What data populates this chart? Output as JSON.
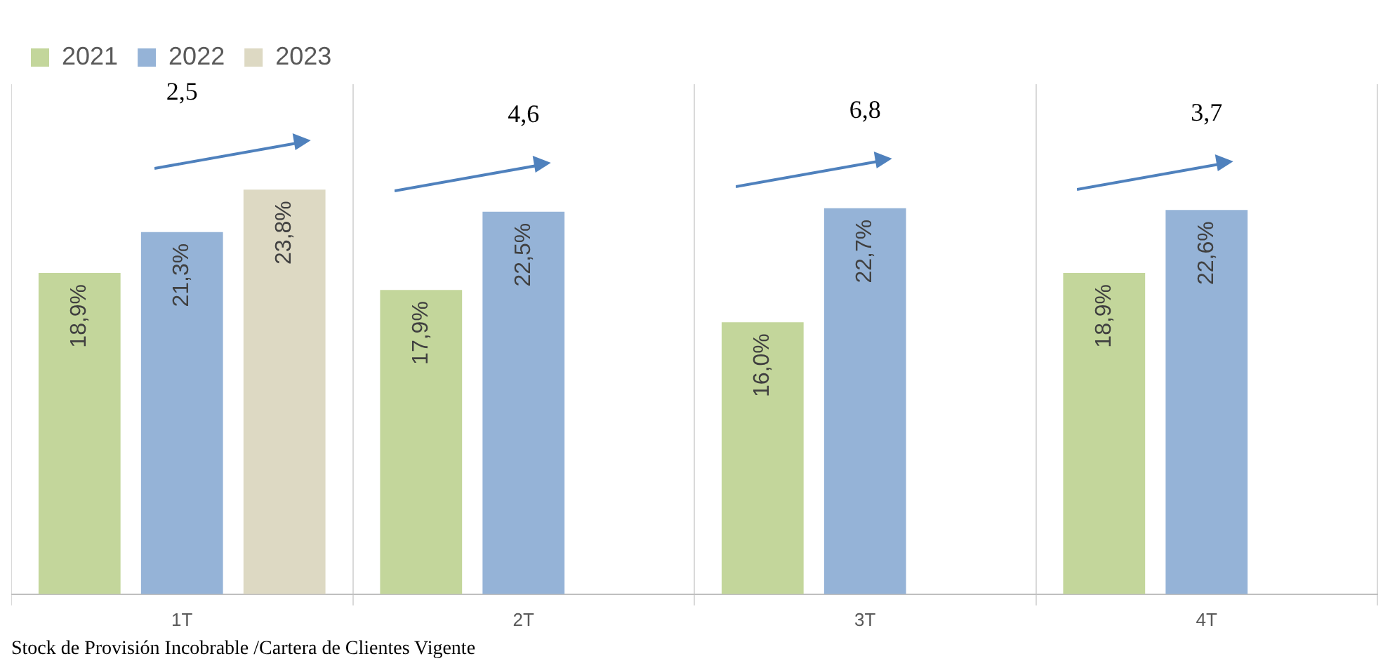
{
  "chart_data": {
    "type": "bar",
    "categories": [
      "1T",
      "2T",
      "3T",
      "4T"
    ],
    "series": [
      {
        "name": "2021",
        "color": "#c3d69b",
        "values": [
          18.9,
          17.9,
          16.0,
          18.9
        ],
        "value_labels": [
          "18,9%",
          "17,9%",
          "16,0%",
          "18,9%"
        ]
      },
      {
        "name": "2022",
        "color": "#95b3d7",
        "values": [
          21.3,
          22.5,
          22.7,
          22.6
        ],
        "value_labels": [
          "21,3%",
          "22,5%",
          "22,7%",
          "22,6%"
        ]
      },
      {
        "name": "2023",
        "color": "#ddd9c3",
        "values": [
          23.8,
          null,
          null,
          null
        ],
        "value_labels": [
          "23,8%",
          null,
          null,
          null
        ]
      }
    ],
    "ylim": [
      0,
      30
    ],
    "grid": "x",
    "legend": "top left",
    "annotations": [
      "2,5",
      "4,6",
      "6,8",
      "3,7",
      "Stock de Provisión Incobrable /Cartera de Clientes Vigente"
    ]
  }
}
